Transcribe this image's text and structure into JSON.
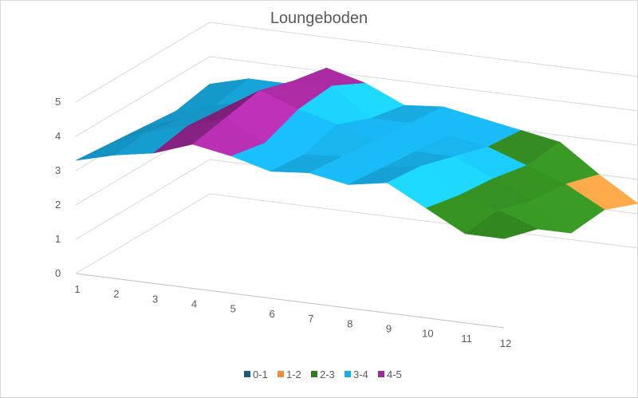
{
  "chart_data": {
    "type": "surface",
    "title": "Loungeboden",
    "x_labels": [
      "1",
      "2",
      "3",
      "4",
      "5",
      "6",
      "7",
      "8",
      "9",
      "10",
      "11",
      "12"
    ],
    "z_ticks": [
      "0",
      "1",
      "2",
      "3",
      "4",
      "5"
    ],
    "zlim": [
      0,
      5
    ],
    "rows": [
      [
        3.3,
        3.6,
        3.8,
        4.2,
        4.0,
        3.7,
        3.8,
        3.6,
        3.8,
        3.2,
        2.6,
        2.6
      ],
      [
        3.2,
        3.7,
        4.0,
        4.4,
        3.8,
        3.6,
        3.7,
        3.5,
        3.7,
        3.0,
        2.7,
        2.3
      ],
      [
        3.1,
        3.5,
        3.9,
        4.6,
        4.2,
        3.9,
        3.6,
        3.4,
        3.4,
        2.9,
        2.4,
        1.6
      ],
      [
        3.0,
        3.3,
        3.6,
        4.3,
        4.3,
        3.5,
        3.5,
        3.3,
        3.1,
        2.7,
        2.3,
        1.7
      ],
      [
        3.2,
        3.5,
        3.5,
        4.1,
        3.8,
        3.3,
        3.4,
        3.2,
        3.0,
        2.8,
        2.0,
        1.3
      ]
    ],
    "bands": [
      {
        "name": "0-1",
        "color": "#1e5a7a"
      },
      {
        "name": "1-2",
        "color": "#f2893c"
      },
      {
        "name": "2-3",
        "color": "#2e7d1e"
      },
      {
        "name": "3-4",
        "color": "#18aee6"
      },
      {
        "name": "4-5",
        "color": "#a0299a"
      }
    ],
    "grid": true,
    "legend_position": "bottom"
  }
}
